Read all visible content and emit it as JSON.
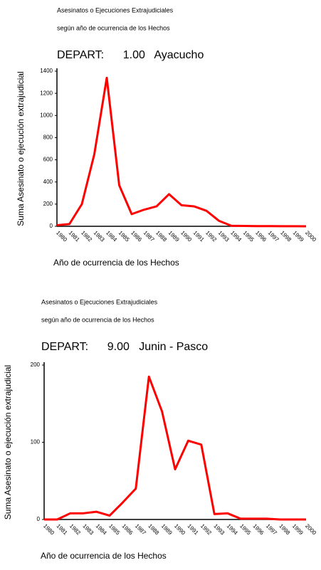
{
  "chart_data": [
    {
      "type": "line",
      "title": "Asesinatos o Ejecuciones Extrajudiciales",
      "subtitle": "según año de ocurrencia de los Hechos",
      "heading": "DEPART:      1.00   Ayacucho",
      "y_label": "Suma Asesinato o ejecución extrajudicial",
      "x_label": "Año de ocurrencia de los Hechos",
      "categories": [
        "1980",
        "1981",
        "1982",
        "1983",
        "1984",
        "1985",
        "1986",
        "1987",
        "1988",
        "1989",
        "1990",
        "1991",
        "1992",
        "1993",
        "1994",
        "1995",
        "1996",
        "1997",
        "1998",
        "1999",
        "2000"
      ],
      "values": [
        10,
        20,
        200,
        650,
        1340,
        370,
        110,
        150,
        180,
        290,
        190,
        180,
        140,
        50,
        5,
        3,
        2,
        2,
        1,
        1,
        0
      ],
      "color": "#ff0000",
      "ylim": [
        0,
        1400
      ],
      "yticks": [
        0,
        200,
        400,
        600,
        800,
        1000,
        1200,
        1400
      ]
    },
    {
      "type": "line",
      "title": "Asesinatos o Ejecuciones Extrajudiciales",
      "subtitle": "según año de ocurrencia de los Hechos",
      "heading": "DEPART:      9.00   Junin - Pasco",
      "y_label": "Suma Asesinato o ejecución extrajudicial",
      "x_label": "Año de ocurrencia de los Hechos",
      "categories": [
        "1980",
        "1981",
        "1982",
        "1983",
        "1984",
        "1985",
        "1986",
        "1987",
        "1988",
        "1989",
        "1990",
        "1991",
        "1992",
        "1993",
        "1994",
        "1995",
        "1996",
        "1997",
        "1998",
        "1999",
        "2000"
      ],
      "values": [
        0,
        0,
        8,
        8,
        10,
        5,
        22,
        40,
        185,
        140,
        65,
        102,
        97,
        7,
        8,
        1,
        1,
        1,
        0,
        0,
        0
      ],
      "color": "#ff0000",
      "ylim": [
        0,
        200
      ],
      "yticks": [
        0,
        100,
        200
      ]
    }
  ]
}
